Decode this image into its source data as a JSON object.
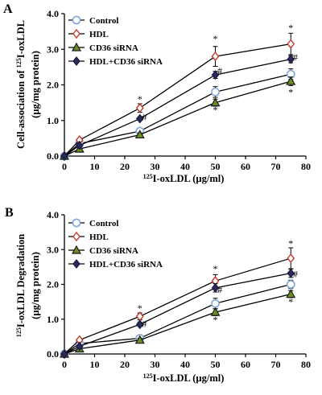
{
  "chart_data": [
    {
      "panel": "A",
      "type": "line",
      "ylabel_line1_pre": "Cell-association of ",
      "ylabel_sup": "125",
      "ylabel_line1_post": "I-oxLDL",
      "ylabel_line2": "(µg/mg protein)",
      "xlabel_sup": "125",
      "xlabel": "I-oxLDL (µg/ml)",
      "xlim": [
        0,
        80
      ],
      "ylim": [
        0,
        4
      ],
      "xticks": [
        "0",
        "10",
        "20",
        "30",
        "40",
        "50",
        "60",
        "70",
        "80"
      ],
      "yticks": [
        "0.0",
        "1.0",
        "2.0",
        "3.0",
        "4.0"
      ],
      "x": [
        0,
        5,
        25,
        50,
        75
      ],
      "legend_position": "top-left",
      "series": [
        {
          "name": "Control",
          "values": [
            0,
            0.35,
            0.7,
            1.8,
            2.3
          ],
          "errors": [
            0,
            0.05,
            0.08,
            0.15,
            0.15
          ],
          "marker": "circle",
          "color": "#7fa7d9"
        },
        {
          "name": "HDL",
          "values": [
            0,
            0.45,
            1.35,
            2.8,
            3.15
          ],
          "errors": [
            0,
            0.05,
            0.12,
            0.28,
            0.3
          ],
          "marker": "diamond-open",
          "color": "#c0392b"
        },
        {
          "name": "CD36 siRNA",
          "values": [
            0,
            0.2,
            0.6,
            1.5,
            2.1
          ],
          "errors": [
            0,
            0.03,
            0.05,
            0.1,
            0.12
          ],
          "marker": "triangle",
          "color": "#1a1a1a"
        },
        {
          "name": "HDL+CD36 siRNA",
          "values": [
            0,
            0.3,
            1.05,
            2.28,
            2.72
          ],
          "errors": [
            0,
            0.04,
            0.05,
            0.1,
            0.1
          ],
          "marker": "diamond-filled",
          "color": "#1a1a40"
        }
      ],
      "annotations": [
        {
          "text": "*",
          "x": 25,
          "y": 1.6
        },
        {
          "text": "#",
          "x": 26.5,
          "y": 1.1
        },
        {
          "text": "*",
          "x": 50,
          "y": 3.3
        },
        {
          "text": "#",
          "x": 51.5,
          "y": 2.4
        },
        {
          "text": "*",
          "x": 50,
          "y": 1.3
        },
        {
          "text": "*",
          "x": 75,
          "y": 3.6
        },
        {
          "text": "#",
          "x": 76.5,
          "y": 2.78
        },
        {
          "text": "*",
          "x": 75,
          "y": 1.8
        }
      ]
    },
    {
      "panel": "B",
      "type": "line",
      "ylabel_sup": "125",
      "ylabel_line1_post": "I-oxLDL Degradation",
      "ylabel_line2": "(µg/mg protein)",
      "xlabel_sup": "125",
      "xlabel": "I-oxLDL (µg/ml)",
      "xlim": [
        0,
        80
      ],
      "ylim": [
        0,
        4
      ],
      "xticks": [
        "0",
        "10",
        "20",
        "30",
        "40",
        "50",
        "60",
        "70",
        "80"
      ],
      "yticks": [
        "0.0",
        "1.0",
        "2.0",
        "3.0",
        "4.0"
      ],
      "x": [
        0,
        5,
        25,
        50,
        75
      ],
      "legend_position": "top-left",
      "series": [
        {
          "name": "Control",
          "values": [
            0,
            0.3,
            0.45,
            1.45,
            2.0
          ],
          "errors": [
            0,
            0.04,
            0.05,
            0.15,
            0.12
          ],
          "marker": "circle",
          "color": "#7fa7d9"
        },
        {
          "name": "HDL",
          "values": [
            0,
            0.4,
            1.08,
            2.1,
            2.75
          ],
          "errors": [
            0,
            0.05,
            0.1,
            0.18,
            0.3
          ],
          "marker": "diamond-open",
          "color": "#c0392b"
        },
        {
          "name": "CD36 siRNA",
          "values": [
            0,
            0.15,
            0.4,
            1.2,
            1.72
          ],
          "errors": [
            0,
            0.03,
            0.05,
            0.1,
            0.1
          ],
          "marker": "triangle",
          "color": "#1a1a1a"
        },
        {
          "name": "HDL+CD36 siRNA",
          "values": [
            0,
            0.22,
            0.85,
            1.9,
            2.32
          ],
          "errors": [
            0,
            0.03,
            0.06,
            0.12,
            0.12
          ],
          "marker": "diamond-filled",
          "color": "#1a1a40"
        }
      ],
      "annotations": [
        {
          "text": "*",
          "x": 25,
          "y": 1.32
        },
        {
          "text": "#",
          "x": 26.5,
          "y": 0.87
        },
        {
          "text": "*",
          "x": 50,
          "y": 2.45
        },
        {
          "text": "#",
          "x": 51.5,
          "y": 1.85
        },
        {
          "text": "*",
          "x": 50,
          "y": 0.98
        },
        {
          "text": "*",
          "x": 75,
          "y": 3.18
        },
        {
          "text": "#",
          "x": 76.5,
          "y": 2.3
        },
        {
          "text": "*",
          "x": 75,
          "y": 1.5
        }
      ]
    }
  ]
}
